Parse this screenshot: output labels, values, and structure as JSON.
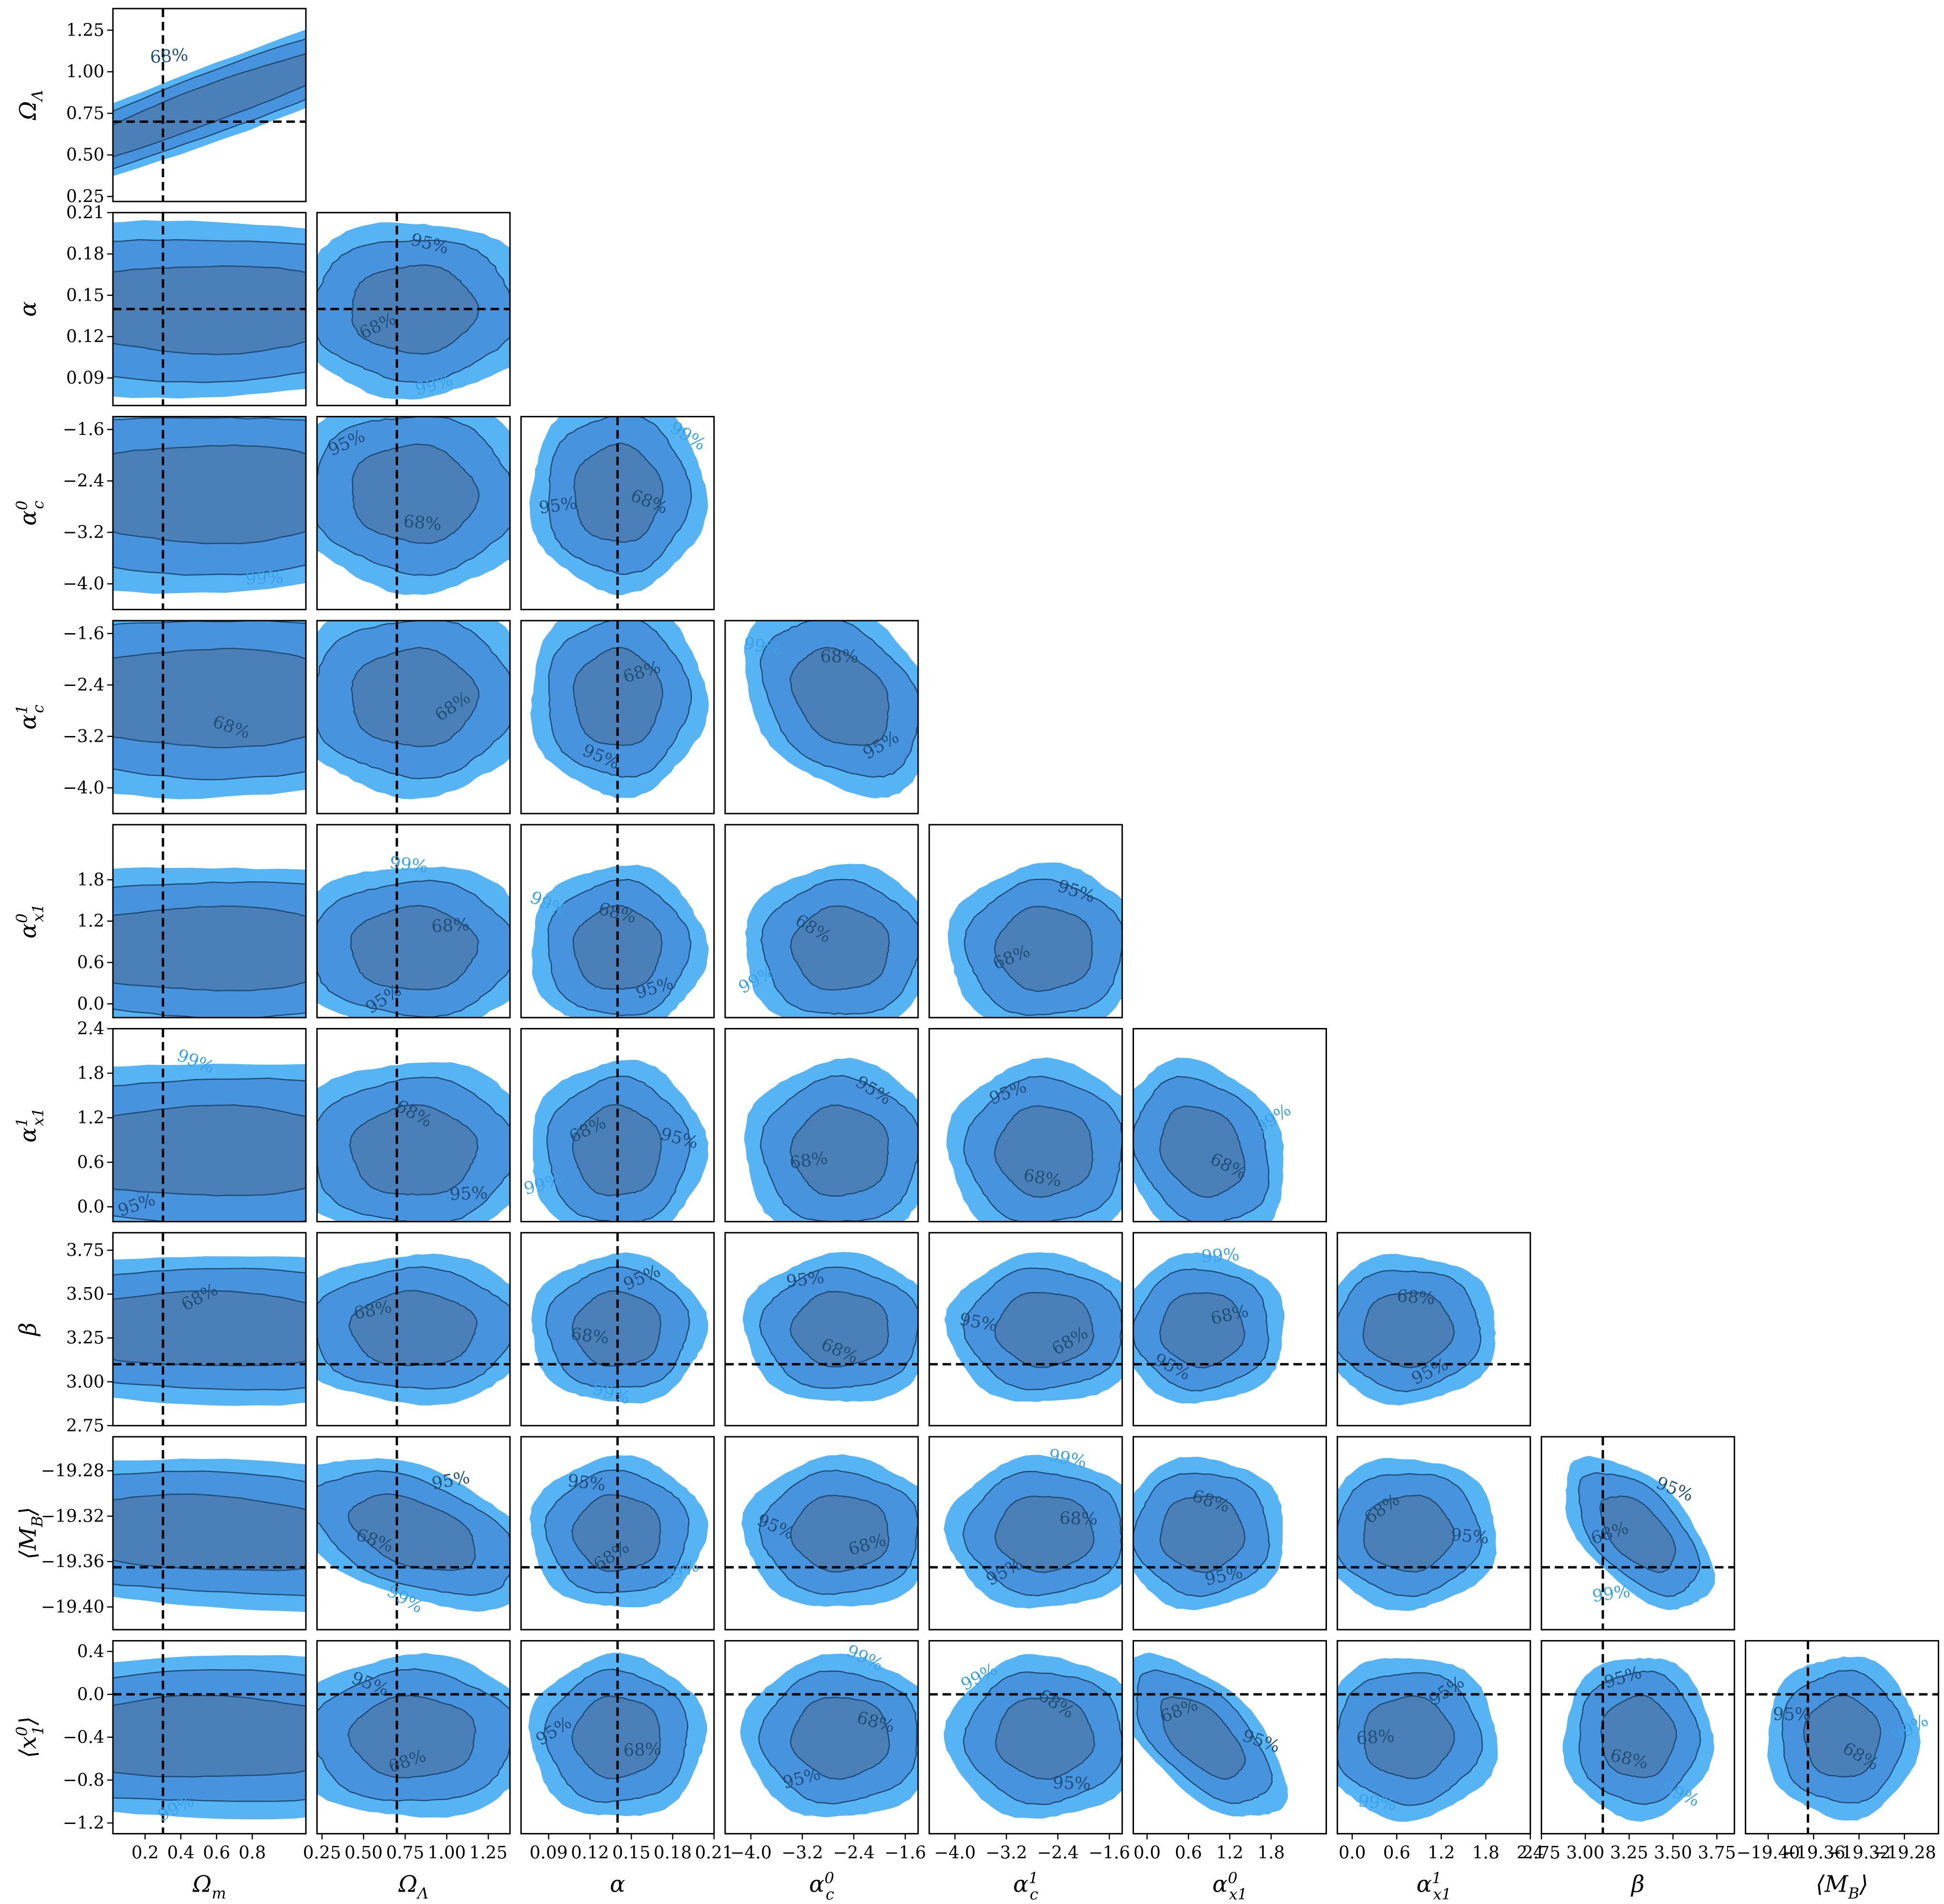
{
  "colors": {
    "level_99": "#56b4f5",
    "level_95": "#4893de",
    "level_68": "#4a80b7",
    "contour_line": "#1e4a73",
    "truth_line": "#000000"
  },
  "chart_data": {
    "type": "corner",
    "contour_levels": [
      "68%",
      "95%",
      "99%"
    ],
    "parameters": [
      {
        "label": "Ω_m",
        "range": [
          0.02,
          1.1
        ],
        "ticks": [
          0.2,
          0.4,
          0.6,
          0.8
        ],
        "tick_labels": [
          "0.2",
          "0.4",
          "0.6",
          "0.8"
        ],
        "truth": 0.3,
        "mean": 0.55,
        "sd": 0.6
      },
      {
        "label": "Ω_Λ",
        "range": [
          0.22,
          1.38
        ],
        "ticks": [
          0.25,
          0.5,
          0.75,
          1.0,
          1.25
        ],
        "tick_labels": [
          "0.25",
          "0.50",
          "0.75",
          "1.00",
          "1.25"
        ],
        "truth": 0.7,
        "mean": 0.8,
        "sd": 0.25
      },
      {
        "label": "α",
        "range": [
          0.07,
          0.21
        ],
        "ticks": [
          0.09,
          0.12,
          0.15,
          0.18,
          0.21
        ],
        "tick_labels": [
          "0.09",
          "0.12",
          "0.15",
          "0.18",
          "0.21"
        ],
        "truth": 0.14,
        "mean": 0.14,
        "sd": 0.021
      },
      {
        "label": "α_c^0",
        "range": [
          -4.4,
          -1.4
        ],
        "ticks": [
          -4.0,
          -3.2,
          -2.4,
          -1.6
        ],
        "tick_labels": [
          "−4.0",
          "−3.2",
          "−2.4",
          "−1.6"
        ],
        "truth": null,
        "mean": -2.6,
        "sd": 0.5
      },
      {
        "label": "α_c^1",
        "range": [
          -4.4,
          -1.4
        ],
        "ticks": [
          -4.0,
          -3.2,
          -2.4,
          -1.6
        ],
        "tick_labels": [
          "−4.0",
          "−3.2",
          "−2.4",
          "−1.6"
        ],
        "truth": null,
        "mean": -2.6,
        "sd": 0.5
      },
      {
        "label": "α_x1^0",
        "range": [
          -0.2,
          2.6
        ],
        "ticks": [
          0.0,
          0.6,
          1.2,
          1.8
        ],
        "tick_labels": [
          "0.0",
          "0.6",
          "1.2",
          "1.8"
        ],
        "truth": null,
        "mean": 0.8,
        "sd": 0.4
      },
      {
        "label": "α_x1^1",
        "range": [
          -0.2,
          2.4
        ],
        "ticks": [
          0.0,
          0.6,
          1.2,
          1.8,
          2.4
        ],
        "tick_labels": [
          "0.0",
          "0.6",
          "1.2",
          "1.8",
          "2.4"
        ],
        "truth": null,
        "mean": 0.75,
        "sd": 0.4
      },
      {
        "label": "β",
        "range": [
          2.75,
          3.85
        ],
        "ticks": [
          2.75,
          3.0,
          3.25,
          3.5,
          3.75
        ],
        "tick_labels": [
          "2.75",
          "3.00",
          "3.25",
          "3.50",
          "3.75"
        ],
        "truth": 3.1,
        "mean": 3.3,
        "sd": 0.14
      },
      {
        "label": "⟨M_B⟩",
        "range": [
          -19.42,
          -19.25
        ],
        "ticks": [
          -19.4,
          -19.36,
          -19.32,
          -19.28
        ],
        "tick_labels": [
          "−19.40",
          "−19.36",
          "−19.32",
          "−19.28"
        ],
        "truth": -19.365,
        "mean": -19.335,
        "sd": 0.022
      },
      {
        "label": "⟨x_1^0⟩",
        "range": [
          -1.3,
          0.5
        ],
        "ticks": [
          -1.2,
          -0.8,
          -0.4,
          0.0,
          0.4
        ],
        "tick_labels": [
          "−1.2",
          "−0.8",
          "−0.4",
          "0.0",
          "0.4"
        ],
        "truth": 0.0,
        "mean": -0.4,
        "sd": 0.25
      }
    ],
    "correlations": {
      "1,0": 0.95,
      "7,0": -0.05,
      "8,0": -0.2,
      "8,1": -0.45,
      "8,7": -0.55,
      "9,5": -0.6,
      "4,3": -0.3,
      "6,5": -0.2,
      "3,1": -0.05
    }
  }
}
